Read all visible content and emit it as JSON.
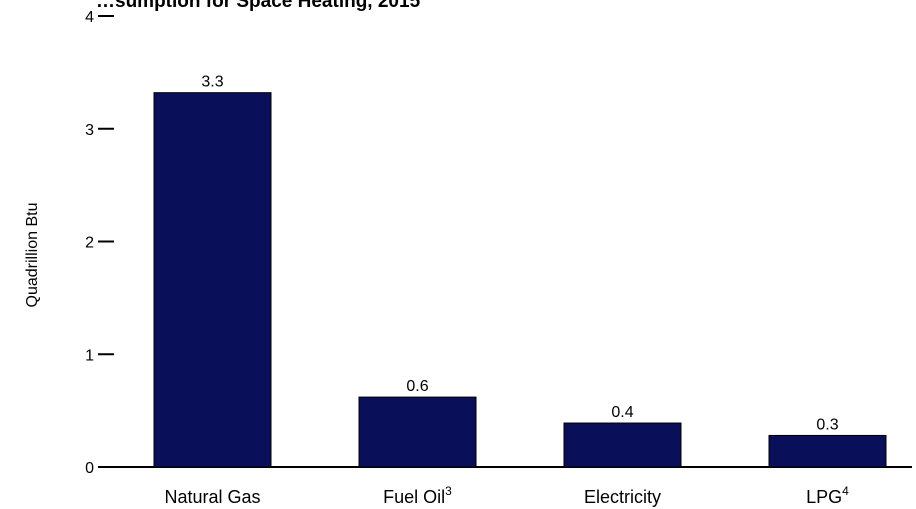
{
  "chart_data": {
    "type": "bar",
    "title": "…sumption for Space Heating, 2015",
    "ylabel": "Quadrillion Btu",
    "xlabel": "",
    "ylim": [
      0,
      4
    ],
    "yticks": [
      0,
      1,
      2,
      3,
      4
    ],
    "categories": [
      {
        "label": "Natural Gas",
        "sup": ""
      },
      {
        "label": "Fuel Oil",
        "sup": "3"
      },
      {
        "label": "Electricity",
        "sup": ""
      },
      {
        "label": "LPG",
        "sup": "4"
      }
    ],
    "values": [
      3.32,
      0.62,
      0.39,
      0.28
    ],
    "data_labels": [
      "3.3",
      "0.6",
      "0.4",
      "0.3"
    ],
    "bar_color": "#0a0f5a",
    "grid": false,
    "legend": "none"
  }
}
